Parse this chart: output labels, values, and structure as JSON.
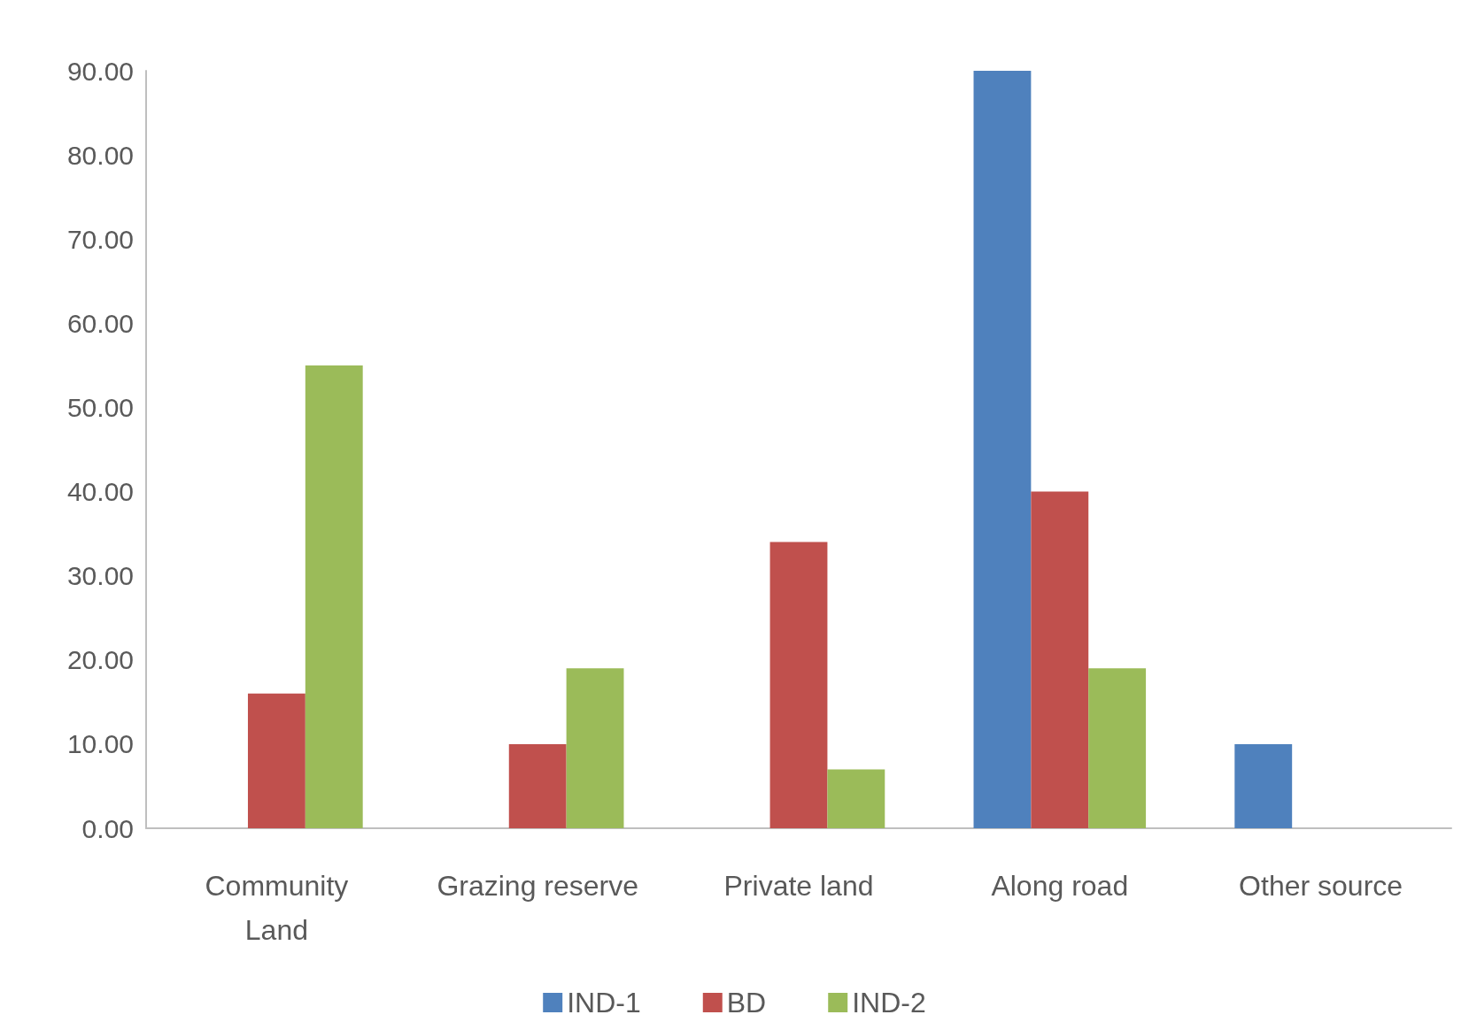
{
  "chart_data": {
    "type": "bar",
    "categories": [
      "Community\nLand",
      "Grazing reserve",
      "Private land",
      "Along road",
      "Other source"
    ],
    "series": [
      {
        "name": "IND-1",
        "color": "#4f81bd",
        "values": [
          0,
          0,
          0,
          90,
          10
        ]
      },
      {
        "name": "BD",
        "color": "#c0504d",
        "values": [
          16,
          10,
          34,
          40,
          0
        ]
      },
      {
        "name": "IND-2",
        "color": "#9bbb59",
        "values": [
          55,
          19,
          7,
          19,
          0
        ]
      }
    ],
    "ylim": [
      0,
      90
    ],
    "yticks": [
      {
        "value": 0,
        "label": "0.00"
      },
      {
        "value": 10,
        "label": "10.00"
      },
      {
        "value": 20,
        "label": "20.00"
      },
      {
        "value": 30,
        "label": "30.00"
      },
      {
        "value": 40,
        "label": "40.00"
      },
      {
        "value": 50,
        "label": "50.00"
      },
      {
        "value": 60,
        "label": "60.00"
      },
      {
        "value": 70,
        "label": "70.00"
      },
      {
        "value": 80,
        "label": "80.00"
      },
      {
        "value": 90,
        "label": "90.00"
      }
    ],
    "grid": false,
    "legend": "bottom"
  }
}
